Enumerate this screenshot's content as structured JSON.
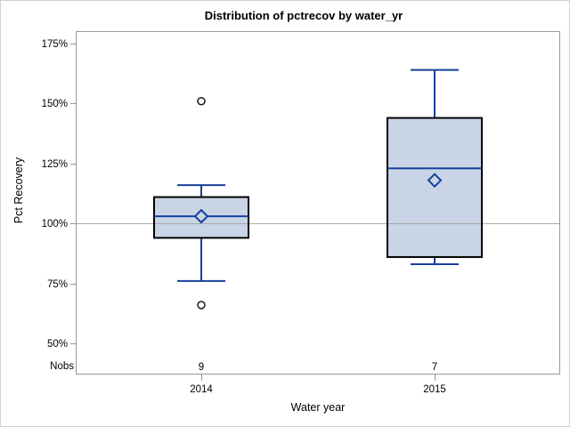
{
  "chart_data": {
    "type": "boxplot",
    "title": "Distribution of pctrecov by water_yr",
    "xlabel": "Water year",
    "ylabel": "Pct Recovery",
    "categories": [
      "2014",
      "2015"
    ],
    "y_ticks": [
      175,
      150,
      125,
      100,
      75,
      50
    ],
    "y_tick_labels": [
      "175%",
      "150%",
      "125%",
      "100%",
      "75%",
      "50%"
    ],
    "ylim": [
      37,
      181
    ],
    "grid": false,
    "legend": false,
    "reference_line_y": 100,
    "nobs": {
      "label": "Nobs",
      "values": [
        "9",
        "7"
      ]
    },
    "boxes": [
      {
        "category": "2014",
        "whisker_low": 76,
        "q1": 94,
        "median": 103,
        "q3": 111,
        "whisker_high": 116,
        "mean": 103,
        "outliers": [
          151,
          66
        ]
      },
      {
        "category": "2015",
        "whisker_low": 83,
        "q1": 86,
        "median": 123,
        "q3": 144,
        "whisker_high": 164,
        "mean": 118,
        "outliers": []
      }
    ],
    "colors": {
      "box_fill": "#c9d5e6",
      "box_border": "#000000",
      "line_blue": "#16409a",
      "frame_gray": "#94999e",
      "reference_gray": "#a8a8a8",
      "outlier_stroke": "#1a1a1a",
      "figure_border": "#d2d2d2"
    }
  }
}
